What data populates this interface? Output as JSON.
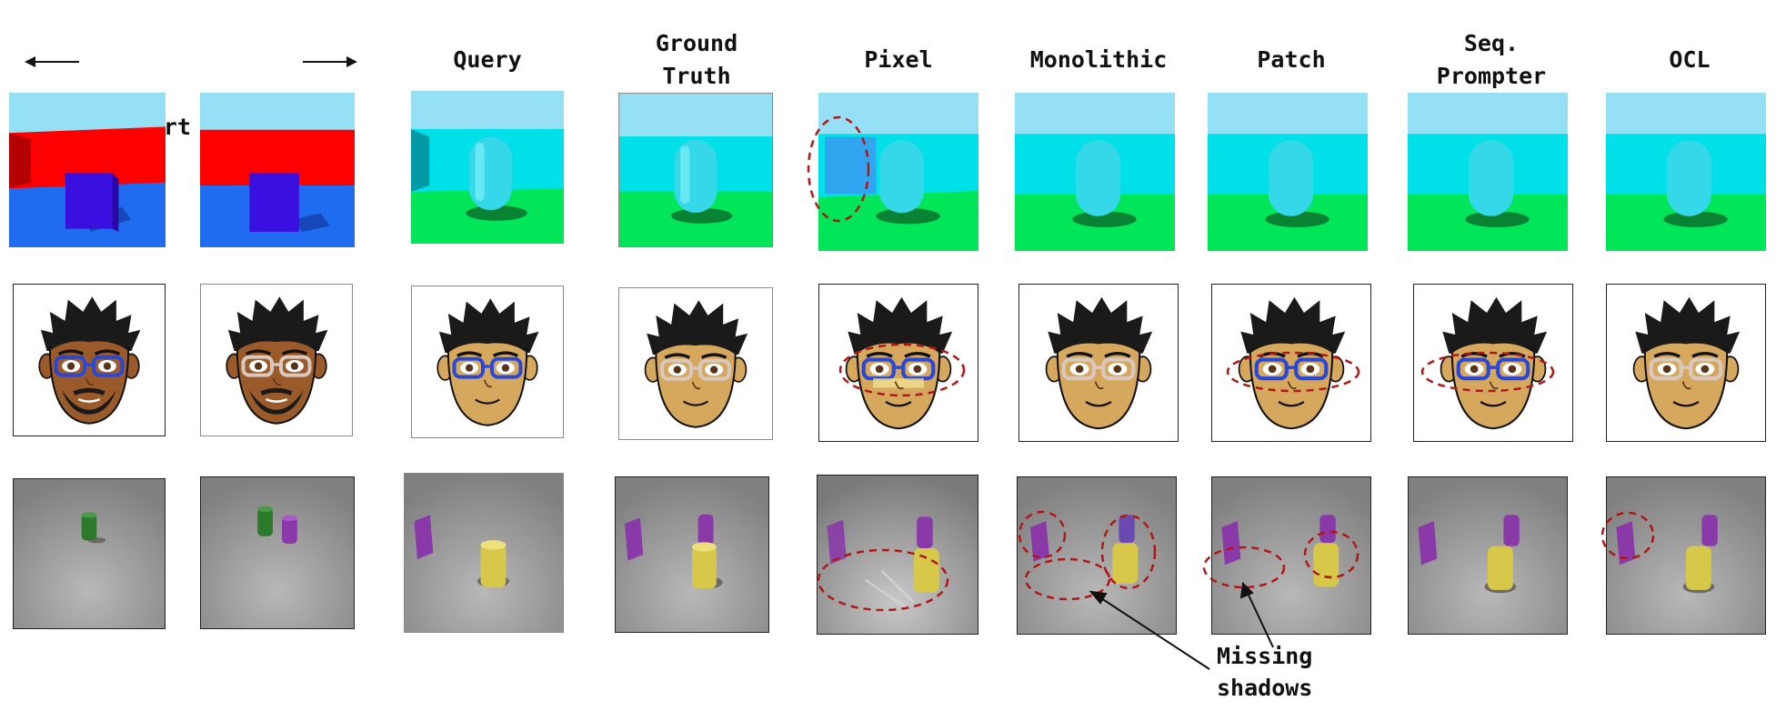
{
  "figure": {
    "support_prompt_label": "Support Prompt",
    "columns": [
      {
        "key": "query",
        "label": "Query"
      },
      {
        "key": "ground_truth",
        "label": "Ground\nTruth"
      },
      {
        "key": "pixel",
        "label": "Pixel"
      },
      {
        "key": "monolithic",
        "label": "Monolithic"
      },
      {
        "key": "patch",
        "label": "Patch"
      },
      {
        "key": "seq_prompter",
        "label": "Seq.\nPrompter"
      },
      {
        "key": "ocl",
        "label": "OCL"
      }
    ],
    "annotation": "Missing\nshadows"
  },
  "colors": {
    "sky": "#96e0f5",
    "red_wall": "#ff0000",
    "blue_floor": "#1f6cf0",
    "cube": "#3a10e0",
    "cyan_wall": "#00e8f0",
    "green_floor": "#00e658",
    "cylinder": "#34d8e8",
    "skin_dark": "#9a5a2a",
    "skin_light": "#d6a85e",
    "hair": "#1a1a1a",
    "glasses_blue": "#2a48d8",
    "glasses_light": "#d8c8c0",
    "clevr_bg": "#8c8c8c",
    "purple": "#8a3aa8",
    "yellow": "#d8c84a",
    "green": "#2a7a2a",
    "ellipse": "#b01818"
  }
}
